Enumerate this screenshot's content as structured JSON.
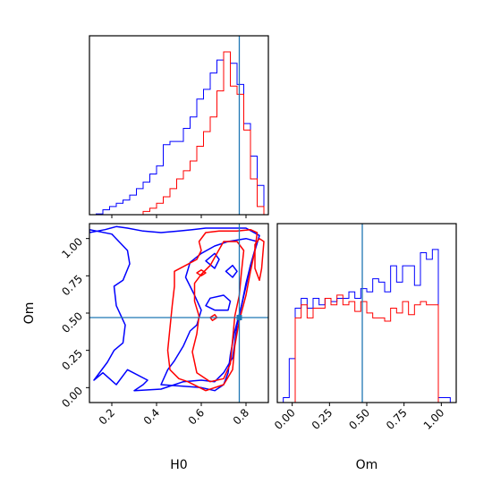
{
  "chart_data": {
    "type": "corner",
    "parameters": [
      "H0",
      "Om"
    ],
    "truth": {
      "H0": 0.77,
      "Om": 0.47
    },
    "series_colors": [
      "#0000ff",
      "#ff0000"
    ],
    "truth_color": "#1f77b4",
    "H0_axis": {
      "range": [
        0.1,
        0.9
      ],
      "ticks": [
        0.2,
        0.4,
        0.6,
        0.8
      ],
      "tick_labels": [
        "0.2",
        "0.4",
        "0.6",
        "0.8"
      ],
      "label": "H0"
    },
    "Om_axis": {
      "range": [
        -0.1,
        1.1
      ],
      "ticks": [
        0.0,
        0.25,
        0.5,
        0.75,
        1.0
      ],
      "tick_labels": [
        "0.00",
        "0.25",
        "0.50",
        "0.75",
        "1.00"
      ],
      "label": "Om"
    },
    "H0_hist": {
      "bin_edges": [
        0.1,
        0.13,
        0.16,
        0.19,
        0.22,
        0.25,
        0.28,
        0.31,
        0.34,
        0.37,
        0.4,
        0.43,
        0.46,
        0.49,
        0.52,
        0.55,
        0.58,
        0.61,
        0.64,
        0.67,
        0.7,
        0.73,
        0.76,
        0.79,
        0.82,
        0.85,
        0.88
      ],
      "series": [
        {
          "values": [
            0,
            0.5,
            3,
            5,
            7,
            9,
            12,
            16,
            20,
            25,
            30,
            43,
            45,
            45,
            53,
            60,
            71,
            77,
            87,
            95,
            100,
            93,
            80,
            56,
            36,
            18
          ]
        },
        {
          "values": [
            0,
            0,
            0,
            0,
            0,
            0,
            0,
            0,
            2,
            4,
            7,
            11,
            16,
            22,
            27,
            33,
            42,
            51,
            60,
            76,
            100,
            79,
            74,
            52,
            22,
            5
          ]
        }
      ]
    },
    "Om_hist": {
      "bin_edges": [
        -0.06,
        -0.02,
        0.02,
        0.06,
        0.1,
        0.14,
        0.18,
        0.22,
        0.26,
        0.3,
        0.34,
        0.38,
        0.42,
        0.46,
        0.5,
        0.54,
        0.58,
        0.62,
        0.66,
        0.7,
        0.74,
        0.78,
        0.82,
        0.86,
        0.9,
        0.94,
        0.98,
        1.02,
        1.06
      ],
      "series": [
        {
          "values": [
            3,
            27,
            58,
            64,
            58,
            64,
            60,
            64,
            62,
            64,
            64,
            68,
            64,
            70,
            68,
            76,
            74,
            68,
            84,
            74,
            84,
            84,
            72,
            92,
            88,
            94,
            3,
            3
          ]
        },
        {
          "values": [
            0,
            0,
            52,
            60,
            52,
            58,
            58,
            64,
            60,
            66,
            60,
            62,
            56,
            62,
            55,
            52,
            52,
            50,
            58,
            55,
            62,
            54,
            60,
            62,
            60,
            60,
            0,
            0
          ]
        }
      ]
    },
    "contours": [
      {
        "series": 0,
        "points": [
          [
            0.12,
            0.05
          ],
          [
            0.16,
            0.1
          ],
          [
            0.22,
            0.02
          ],
          [
            0.27,
            0.12
          ],
          [
            0.36,
            0.05
          ],
          [
            0.34,
            0.02
          ],
          [
            0.3,
            -0.02
          ],
          [
            0.42,
            -0.01
          ],
          [
            0.52,
            0.04
          ],
          [
            0.6,
            0.05
          ],
          [
            0.66,
            0.04
          ],
          [
            0.7,
            0.1
          ],
          [
            0.74,
            0.2
          ],
          [
            0.75,
            0.3
          ],
          [
            0.76,
            0.42
          ],
          [
            0.78,
            0.55
          ],
          [
            0.8,
            0.68
          ],
          [
            0.82,
            0.82
          ],
          [
            0.84,
            0.92
          ],
          [
            0.86,
            1.02
          ],
          [
            0.8,
            1.07
          ],
          [
            0.72,
            1.07
          ],
          [
            0.62,
            1.07
          ],
          [
            0.56,
            1.06
          ],
          [
            0.5,
            1.05
          ],
          [
            0.42,
            1.04
          ],
          [
            0.34,
            1.05
          ],
          [
            0.27,
            1.07
          ],
          [
            0.22,
            1.08
          ],
          [
            0.17,
            1.06
          ],
          [
            0.1,
            1.04
          ],
          [
            0.1,
            1.06
          ],
          [
            0.2,
            1.03
          ],
          [
            0.27,
            0.92
          ],
          [
            0.28,
            0.83
          ],
          [
            0.25,
            0.72
          ],
          [
            0.21,
            0.68
          ],
          [
            0.22,
            0.55
          ],
          [
            0.26,
            0.42
          ],
          [
            0.25,
            0.3
          ],
          [
            0.21,
            0.25
          ],
          [
            0.18,
            0.17
          ],
          [
            0.12,
            0.05
          ]
        ]
      },
      {
        "series": 0,
        "points": [
          [
            0.42,
            0.02
          ],
          [
            0.52,
            0.01
          ],
          [
            0.6,
            0.0
          ],
          [
            0.66,
            -0.02
          ],
          [
            0.7,
            0.02
          ],
          [
            0.72,
            0.1
          ],
          [
            0.73,
            0.22
          ],
          [
            0.75,
            0.38
          ],
          [
            0.78,
            0.55
          ],
          [
            0.8,
            0.7
          ],
          [
            0.82,
            0.82
          ],
          [
            0.85,
            0.98
          ],
          [
            0.8,
            1.0
          ],
          [
            0.72,
            0.98
          ],
          [
            0.66,
            0.95
          ],
          [
            0.6,
            0.9
          ],
          [
            0.55,
            0.84
          ],
          [
            0.53,
            0.74
          ],
          [
            0.57,
            0.62
          ],
          [
            0.6,
            0.52
          ],
          [
            0.58,
            0.42
          ],
          [
            0.55,
            0.38
          ],
          [
            0.52,
            0.28
          ],
          [
            0.48,
            0.18
          ],
          [
            0.45,
            0.12
          ],
          [
            0.42,
            0.02
          ]
        ]
      },
      {
        "series": 0,
        "points": [
          [
            0.62,
            0.55
          ],
          [
            0.64,
            0.6
          ],
          [
            0.7,
            0.62
          ],
          [
            0.73,
            0.58
          ],
          [
            0.72,
            0.52
          ],
          [
            0.66,
            0.52
          ],
          [
            0.62,
            0.55
          ]
        ]
      },
      {
        "series": 0,
        "points": [
          [
            0.62,
            0.85
          ],
          [
            0.66,
            0.9
          ],
          [
            0.68,
            0.86
          ],
          [
            0.66,
            0.8
          ],
          [
            0.62,
            0.85
          ]
        ]
      },
      {
        "series": 0,
        "points": [
          [
            0.71,
            0.78
          ],
          [
            0.74,
            0.82
          ],
          [
            0.76,
            0.78
          ],
          [
            0.74,
            0.74
          ],
          [
            0.71,
            0.78
          ]
        ]
      },
      {
        "series": 1,
        "points": [
          [
            0.54,
            0.04
          ],
          [
            0.62,
            -0.02
          ],
          [
            0.7,
            0.02
          ],
          [
            0.74,
            0.12
          ],
          [
            0.75,
            0.28
          ],
          [
            0.77,
            0.45
          ],
          [
            0.8,
            0.62
          ],
          [
            0.82,
            0.78
          ],
          [
            0.84,
            0.92
          ],
          [
            0.85,
            1.04
          ],
          [
            0.82,
            1.06
          ],
          [
            0.76,
            1.05
          ],
          [
            0.68,
            1.05
          ],
          [
            0.62,
            1.04
          ],
          [
            0.59,
            0.98
          ],
          [
            0.6,
            0.92
          ],
          [
            0.58,
            0.86
          ],
          [
            0.53,
            0.82
          ],
          [
            0.48,
            0.78
          ],
          [
            0.48,
            0.68
          ],
          [
            0.47,
            0.55
          ],
          [
            0.46,
            0.4
          ],
          [
            0.45,
            0.25
          ],
          [
            0.46,
            0.12
          ],
          [
            0.5,
            0.06
          ],
          [
            0.54,
            0.04
          ]
        ]
      },
      {
        "series": 1,
        "points": [
          [
            0.58,
            0.1
          ],
          [
            0.64,
            0.04
          ],
          [
            0.7,
            0.06
          ],
          [
            0.73,
            0.16
          ],
          [
            0.74,
            0.32
          ],
          [
            0.75,
            0.48
          ],
          [
            0.77,
            0.62
          ],
          [
            0.78,
            0.78
          ],
          [
            0.79,
            0.92
          ],
          [
            0.76,
            0.98
          ],
          [
            0.7,
            0.98
          ],
          [
            0.67,
            0.9
          ],
          [
            0.64,
            0.82
          ],
          [
            0.6,
            0.76
          ],
          [
            0.57,
            0.7
          ],
          [
            0.57,
            0.58
          ],
          [
            0.59,
            0.48
          ],
          [
            0.58,
            0.36
          ],
          [
            0.56,
            0.24
          ],
          [
            0.58,
            0.1
          ]
        ]
      },
      {
        "series": 1,
        "points": [
          [
            0.84,
            0.96
          ],
          [
            0.86,
            1.0
          ],
          [
            0.88,
            0.98
          ],
          [
            0.87,
            0.8
          ],
          [
            0.86,
            0.72
          ],
          [
            0.84,
            0.8
          ],
          [
            0.84,
            0.96
          ]
        ]
      },
      {
        "series": 1,
        "points": [
          [
            0.58,
            0.77
          ],
          [
            0.6,
            0.79
          ],
          [
            0.62,
            0.77
          ],
          [
            0.6,
            0.75
          ],
          [
            0.58,
            0.77
          ]
        ]
      },
      {
        "series": 1,
        "points": [
          [
            0.64,
            0.47
          ],
          [
            0.66,
            0.49
          ],
          [
            0.67,
            0.47
          ],
          [
            0.65,
            0.45
          ],
          [
            0.64,
            0.47
          ]
        ]
      }
    ]
  }
}
